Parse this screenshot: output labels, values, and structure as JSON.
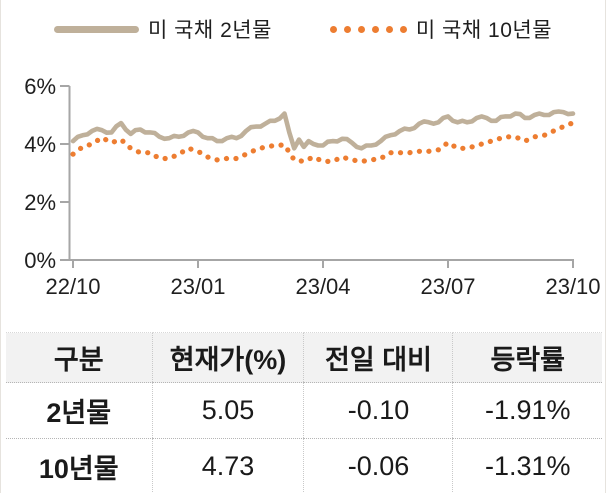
{
  "chart_data": {
    "type": "line",
    "x_ticks": [
      "22/10",
      "23/01",
      "23/04",
      "23/07",
      "23/10"
    ],
    "y_ticks": [
      {
        "label": "6%",
        "value": 6
      },
      {
        "label": "4%",
        "value": 4
      },
      {
        "label": "2%",
        "value": 2
      },
      {
        "label": "0%",
        "value": 0
      }
    ],
    "ylim": [
      0,
      6
    ],
    "grid": false,
    "legend_position": "top",
    "axis_color": "#a6a6a6",
    "series": [
      {
        "name": "미 국채 2년물",
        "style": "solid",
        "color": "#bfb09a",
        "values": [
          4.1,
          4.25,
          4.3,
          4.33,
          4.45,
          4.52,
          4.48,
          4.39,
          4.4,
          4.61,
          4.72,
          4.49,
          4.35,
          4.48,
          4.5,
          4.4,
          4.4,
          4.38,
          4.25,
          4.18,
          4.2,
          4.28,
          4.25,
          4.28,
          4.4,
          4.45,
          4.4,
          4.25,
          4.2,
          4.2,
          4.1,
          4.1,
          4.2,
          4.25,
          4.2,
          4.28,
          4.45,
          4.58,
          4.6,
          4.6,
          4.7,
          4.8,
          4.8,
          4.88,
          5.05,
          4.4,
          3.85,
          4.15,
          3.9,
          4.1,
          4.0,
          3.95,
          3.95,
          4.08,
          4.1,
          4.09,
          4.18,
          4.17,
          4.05,
          3.9,
          3.85,
          3.95,
          3.95,
          3.98,
          4.1,
          4.25,
          4.3,
          4.33,
          4.45,
          4.53,
          4.5,
          4.55,
          4.7,
          4.78,
          4.75,
          4.7,
          4.75,
          4.9,
          4.95,
          4.8,
          4.75,
          4.8,
          4.75,
          4.78,
          4.9,
          4.95,
          4.9,
          4.8,
          4.8,
          4.93,
          4.95,
          4.95,
          5.05,
          5.03,
          4.9,
          4.9,
          5.0,
          5.05,
          5.0,
          5.0,
          5.1,
          5.12,
          5.1,
          5.03,
          5.05
        ]
      },
      {
        "name": "미 국채 10년물",
        "style": "dotted",
        "color": "#ed7d31",
        "values": [
          3.65,
          3.9,
          4.0,
          4.22,
          4.05,
          4.15,
          3.85,
          3.7,
          3.7,
          3.5,
          3.5,
          3.65,
          3.85,
          3.75,
          3.55,
          3.45,
          3.5,
          3.5,
          3.65,
          3.8,
          3.9,
          3.95,
          3.97,
          3.45,
          3.4,
          3.55,
          3.4,
          3.4,
          3.55,
          3.45,
          3.4,
          3.45,
          3.5,
          3.7,
          3.7,
          3.7,
          3.75,
          3.75,
          3.8,
          4.05,
          3.85,
          3.85,
          3.95,
          4.05,
          4.15,
          4.25,
          4.25,
          4.1,
          4.25,
          4.3,
          4.45,
          4.6,
          4.73
        ]
      }
    ]
  },
  "table": {
    "headers": [
      "구분",
      "현재가(%)",
      "전일 대비",
      "등락률"
    ],
    "rows": [
      [
        "2년물",
        "5.05",
        "-0.10",
        "-1.91%"
      ],
      [
        "10년물",
        "4.73",
        "-0.06",
        "-1.31%"
      ]
    ]
  }
}
